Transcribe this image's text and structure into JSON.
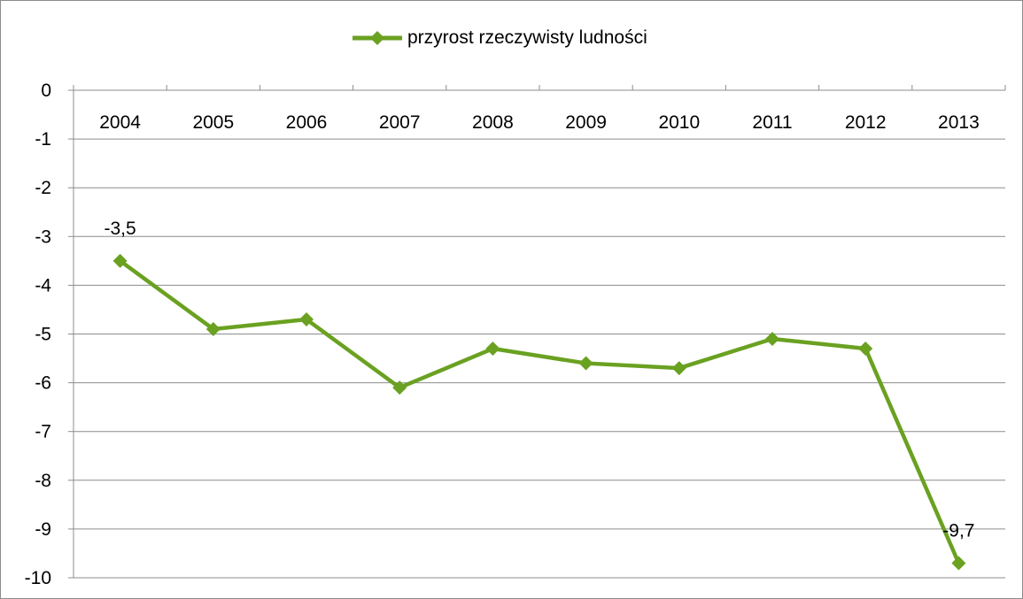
{
  "chart_data": {
    "type": "line",
    "categories": [
      "2004",
      "2005",
      "2006",
      "2007",
      "2008",
      "2009",
      "2010",
      "2011",
      "2012",
      "2013"
    ],
    "series": [
      {
        "name": "przyrost rzeczywisty ludności",
        "values": [
          -3.5,
          -4.9,
          -4.7,
          -6.1,
          -5.3,
          -5.6,
          -5.7,
          -5.1,
          -5.3,
          -9.7
        ],
        "color": "#6aa121",
        "marker": "diamond"
      }
    ],
    "ylim": [
      -10,
      0
    ],
    "yticks": [
      "0",
      "-1",
      "-2",
      "-3",
      "-4",
      "-5",
      "-6",
      "-7",
      "-8",
      "-9",
      "-10"
    ],
    "data_labels": [
      {
        "category": "2004",
        "text": "-3,5"
      },
      {
        "category": "2013",
        "text": "-9,7"
      }
    ],
    "grid": true,
    "legend_position": "top",
    "x_axis_position": "top"
  }
}
